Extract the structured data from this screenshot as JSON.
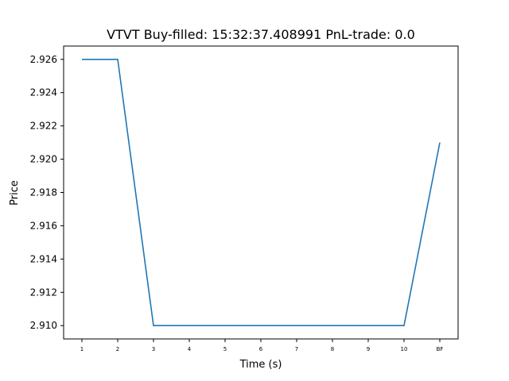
{
  "chart_data": {
    "type": "line",
    "title": "VTVT  Buy-filled:  15:32:37.408991  PnL-trade:  0.0",
    "xlabel": "Time (s)",
    "ylabel": "Price",
    "categories": [
      "1",
      "2",
      "3",
      "4",
      "5",
      "6",
      "7",
      "8",
      "9",
      "10",
      "BF"
    ],
    "series": [
      {
        "values": [
          2.926,
          2.926,
          2.91,
          2.91,
          2.91,
          2.91,
          2.91,
          2.91,
          2.91,
          2.91,
          2.921
        ],
        "color": "#1f77b4"
      }
    ],
    "y_ticks": [
      "2.910",
      "2.912",
      "2.914",
      "2.916",
      "2.918",
      "2.920",
      "2.922",
      "2.924",
      "2.926"
    ],
    "ylim": [
      2.9092,
      2.9268
    ],
    "grid": false,
    "legend": "none"
  }
}
